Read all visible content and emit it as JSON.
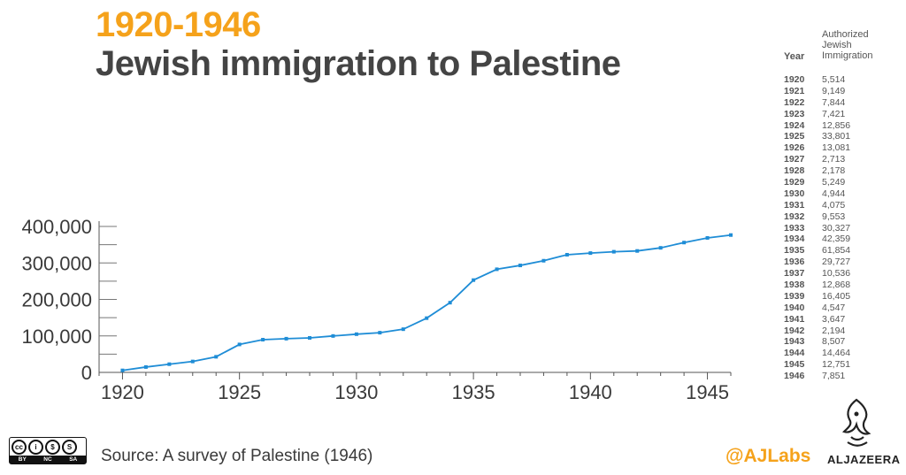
{
  "header": {
    "range_title": "1920-1946",
    "main_title": "Jewish immigration to Palestine"
  },
  "chart_data": {
    "type": "line",
    "title": "Jewish immigration to Palestine",
    "subtitle": "1920-1946",
    "xlabel": "",
    "ylabel": "",
    "x": [
      1920,
      1921,
      1922,
      1923,
      1924,
      1925,
      1926,
      1927,
      1928,
      1929,
      1930,
      1931,
      1932,
      1933,
      1934,
      1935,
      1936,
      1937,
      1938,
      1939,
      1940,
      1941,
      1942,
      1943,
      1944,
      1945,
      1946
    ],
    "series": [
      {
        "values": [
          5514,
          14663,
          22507,
          29928,
          42784,
          76585,
          89666,
          92379,
          94557,
          99806,
          104750,
          108825,
          118378,
          148705,
          191064,
          252918,
          282645,
          293181,
          306049,
          322454,
          327001,
          330648,
          332842,
          341349,
          355813,
          368564,
          376415
        ],
        "color": "#1f8dd6"
      }
    ],
    "xlim": [
      1919,
      1946
    ],
    "ylim": [
      0,
      400000
    ],
    "x_ticks": [
      1920,
      1925,
      1930,
      1935,
      1940,
      1945
    ],
    "x_tick_labels": [
      "1920",
      "1925",
      "1930",
      "1935",
      "1940",
      "1945"
    ],
    "y_ticks": [
      0,
      100000,
      200000,
      300000,
      400000
    ],
    "y_tick_labels": [
      "0",
      "100,000",
      "200,000",
      "300,000",
      "400,000"
    ],
    "grid": false,
    "legend": "none"
  },
  "side_table": {
    "year_header": "Year",
    "value_header": "Authorized\nJewish\nImmigration",
    "rows": [
      {
        "year": "1920",
        "value": "5,514"
      },
      {
        "year": "1921",
        "value": "9,149"
      },
      {
        "year": "1922",
        "value": "7,844"
      },
      {
        "year": "1923",
        "value": "7,421"
      },
      {
        "year": "1924",
        "value": "12,856"
      },
      {
        "year": "1925",
        "value": "33,801"
      },
      {
        "year": "1926",
        "value": "13,081"
      },
      {
        "year": "1927",
        "value": "2,713"
      },
      {
        "year": "1928",
        "value": "2,178"
      },
      {
        "year": "1929",
        "value": "5,249"
      },
      {
        "year": "1930",
        "value": "4,944"
      },
      {
        "year": "1931",
        "value": "4,075"
      },
      {
        "year": "1932",
        "value": "9,553"
      },
      {
        "year": "1933",
        "value": "30,327"
      },
      {
        "year": "1934",
        "value": "42,359"
      },
      {
        "year": "1935",
        "value": "61,854"
      },
      {
        "year": "1936",
        "value": "29,727"
      },
      {
        "year": "1937",
        "value": "10,536"
      },
      {
        "year": "1938",
        "value": "12,868"
      },
      {
        "year": "1939",
        "value": "16,405"
      },
      {
        "year": "1940",
        "value": "4,547"
      },
      {
        "year": "1941",
        "value": "3,647"
      },
      {
        "year": "1942",
        "value": "2,194"
      },
      {
        "year": "1943",
        "value": "8,507"
      },
      {
        "year": "1944",
        "value": "14,464"
      },
      {
        "year": "1945",
        "value": "12,751"
      },
      {
        "year": "1946",
        "value": "7,851"
      }
    ]
  },
  "footer": {
    "source": "Source: A survey of Palestine (1946)",
    "handle": "@AJLabs",
    "brand": "ALJAZEERA",
    "license_labels": [
      "BY",
      "NC",
      "SA"
    ],
    "license_icons": [
      "cc",
      "i",
      "$",
      "S"
    ]
  },
  "colors": {
    "accent": "#f5a21b",
    "line": "#1f8dd6",
    "title": "#444444"
  }
}
